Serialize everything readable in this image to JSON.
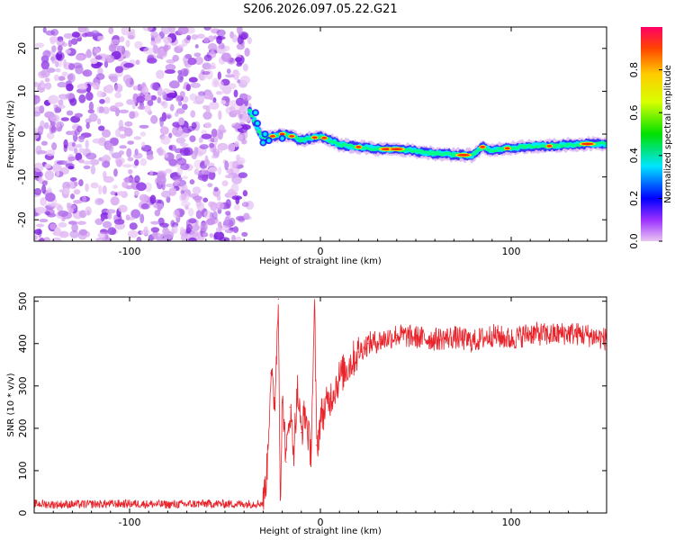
{
  "title": "S206.2026.097.05.22.G21",
  "chart_data": [
    {
      "type": "heatmap",
      "name": "spectrogram",
      "xlabel": "Height of straight line (km)",
      "ylabel": "Frequency (Hz)",
      "xlim": [
        -150,
        150
      ],
      "ylim": [
        -25,
        25
      ],
      "xticks": [
        -100,
        0,
        100
      ],
      "yticks": [
        -20,
        -10,
        0,
        10,
        20
      ],
      "noise_region_x": [
        -150,
        -37
      ],
      "ridge": {
        "x": [
          -37,
          -33,
          -30,
          -25,
          -20,
          -15,
          -10,
          -5,
          0,
          5,
          10,
          20,
          30,
          40,
          50,
          60,
          70,
          80,
          85,
          90,
          100,
          110,
          120,
          130,
          140,
          150
        ],
        "y": [
          5.5,
          1.5,
          -1.0,
          -0.5,
          0.0,
          -0.5,
          -1.5,
          -1.0,
          -0.5,
          -1.5,
          -2.5,
          -3.0,
          -3.5,
          -3.5,
          -4.0,
          -4.5,
          -4.8,
          -5.0,
          -3.0,
          -3.8,
          -3.2,
          -2.8,
          -2.8,
          -2.5,
          -2.3,
          -2.3
        ]
      },
      "colorbar": {
        "label": "Normalized spectral amplitude",
        "range": [
          0.0,
          1.0
        ],
        "ticks": [
          0.0,
          0.2,
          0.4,
          0.6,
          0.8
        ]
      }
    },
    {
      "type": "line",
      "name": "snr",
      "xlabel": "Height of straight line (km)",
      "ylabel": "SNR (10 * v/v)",
      "xlim": [
        -150,
        150
      ],
      "ylim": [
        0,
        510
      ],
      "xticks": [
        -100,
        0,
        100
      ],
      "yticks": [
        0,
        100,
        200,
        300,
        400,
        500
      ],
      "series": [
        {
          "name": "SNR",
          "color": "#e8232a",
          "x": [
            -150,
            -140,
            -120,
            -100,
            -80,
            -60,
            -40,
            -30,
            -28,
            -26,
            -24,
            -22,
            -21,
            -20,
            -19,
            -18,
            -16,
            -14,
            -12,
            -10,
            -8,
            -5,
            -3,
            -2,
            -1,
            0,
            5,
            10,
            15,
            20,
            25,
            30,
            40,
            50,
            60,
            70,
            80,
            90,
            100,
            110,
            120,
            130,
            140,
            150
          ],
          "y": [
            22,
            20,
            21,
            22,
            20,
            22,
            21,
            23,
            100,
            330,
            250,
            505,
            30,
            260,
            220,
            120,
            250,
            150,
            290,
            190,
            240,
            140,
            480,
            160,
            180,
            225,
            270,
            320,
            350,
            380,
            400,
            405,
            420,
            415,
            410,
            415,
            405,
            420,
            410,
            425,
            420,
            425,
            420,
            410
          ]
        }
      ]
    }
  ]
}
